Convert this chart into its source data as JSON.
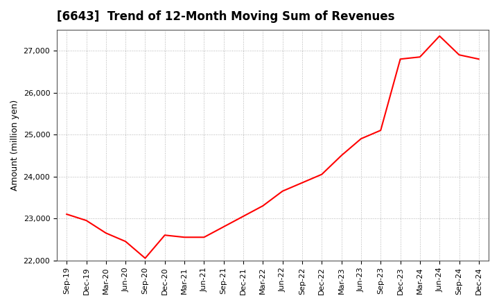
{
  "title": "[6643]  Trend of 12-Month Moving Sum of Revenues",
  "ylabel": "Amount (million yen)",
  "line_color": "#ff0000",
  "background_color": "#ffffff",
  "grid_color": "#aaaaaa",
  "ylim": [
    22000,
    27500
  ],
  "yticks": [
    22000,
    23000,
    24000,
    25000,
    26000,
    27000
  ],
  "x_labels": [
    "Sep-19",
    "Dec-19",
    "Mar-20",
    "Jun-20",
    "Sep-20",
    "Dec-20",
    "Mar-21",
    "Jun-21",
    "Sep-21",
    "Dec-21",
    "Mar-22",
    "Jun-22",
    "Sep-22",
    "Dec-22",
    "Mar-23",
    "Jun-23",
    "Sep-23",
    "Dec-23",
    "Mar-24",
    "Jun-24",
    "Sep-24",
    "Dec-24"
  ],
  "values": [
    23100,
    22950,
    22650,
    22450,
    22050,
    22600,
    22550,
    22550,
    22800,
    23050,
    23300,
    23650,
    23850,
    24050,
    24500,
    24900,
    25100,
    26800,
    26850,
    27350,
    26900,
    26800
  ]
}
